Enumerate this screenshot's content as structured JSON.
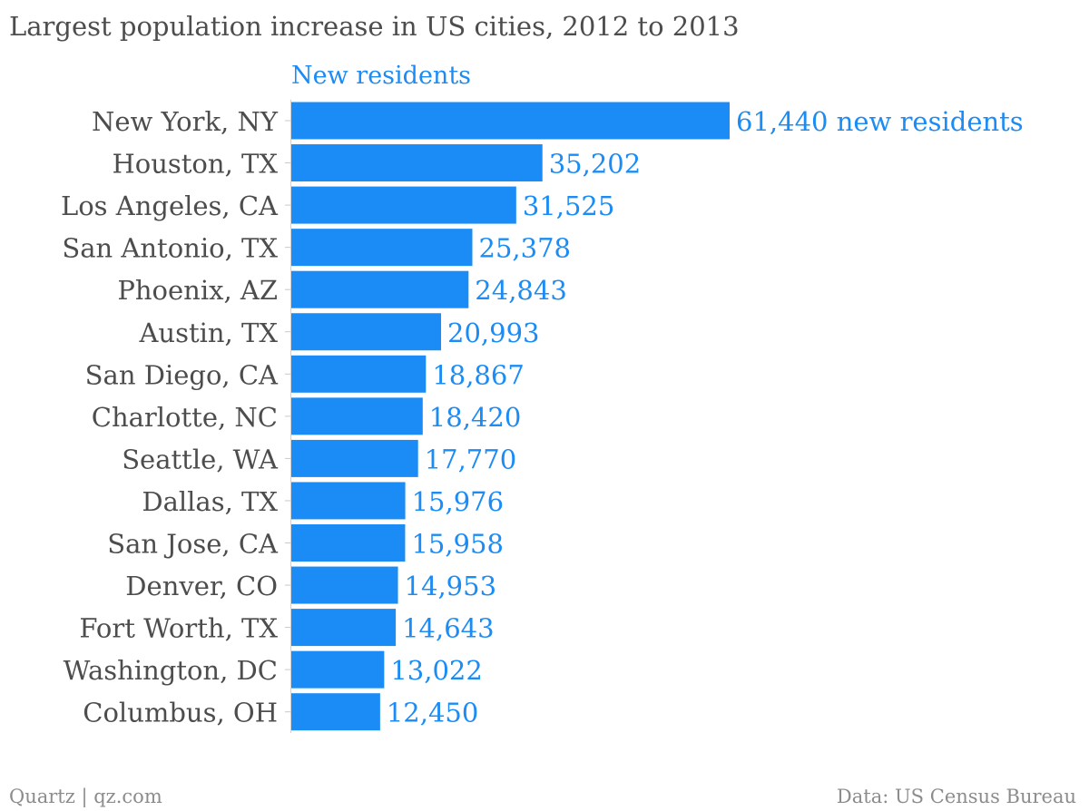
{
  "chart_data": {
    "type": "bar",
    "orientation": "horizontal",
    "title": "Largest population increase in US cities, 2012 to 2013",
    "series": [
      {
        "name": "New residents",
        "color": "#1b8cf5",
        "values": [
          61440,
          35202,
          31525,
          25378,
          24843,
          20993,
          18867,
          18420,
          17770,
          15976,
          15958,
          14953,
          14643,
          13022,
          12450
        ]
      }
    ],
    "categories": [
      "New York, NY",
      "Houston, TX",
      "Los Angeles, CA",
      "San Antonio, TX",
      "Phoenix, AZ",
      "Austin, TX",
      "San Diego, CA",
      "Charlotte, NC",
      "Seattle, WA",
      "Dallas, TX",
      "San Jose, CA",
      "Denver, CO",
      "Fort Worth, TX",
      "Washington, DC",
      "Columbus, OH"
    ],
    "value_labels": [
      "61,440 new residents",
      "35,202",
      "31,525",
      "25,378",
      "24,843",
      "20,993",
      "18,867",
      "18,420",
      "17,770",
      "15,976",
      "15,958",
      "14,953",
      "14,643",
      "13,022",
      "12,450"
    ],
    "xlim": [
      0,
      61440
    ],
    "grid": false,
    "legend": "top"
  },
  "footer": {
    "credit": "Quartz | qz.com",
    "source": "Data: US Census Bureau"
  }
}
